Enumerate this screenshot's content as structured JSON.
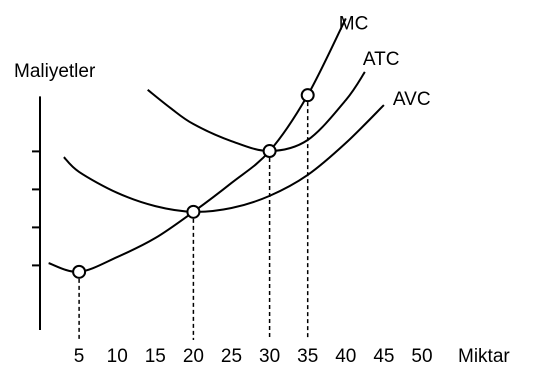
{
  "chart_data": {
    "type": "line",
    "y_label": "Maliyetler",
    "x_label": "Miktar",
    "xlim": [
      0,
      50
    ],
    "xticks": [
      5,
      10,
      15,
      20,
      25,
      30,
      35,
      40,
      45,
      50
    ],
    "ylim": [
      0,
      86
    ],
    "yticks": [
      17,
      27,
      37,
      47
    ],
    "series": [
      {
        "name": "MC",
        "color": "#000000",
        "x": [
          1,
          5,
          10,
          15,
          20,
          25,
          30,
          35,
          40
        ],
        "values": [
          17.6,
          15.3,
          19.2,
          24.2,
          31.1,
          38.7,
          47.1,
          61.8,
          82
        ]
      },
      {
        "name": "ATC",
        "color": "#000000",
        "x": [
          14,
          17,
          20,
          25,
          30,
          35,
          40,
          42.5
        ],
        "values": [
          63.2,
          58.4,
          54.2,
          49.7,
          47.1,
          50,
          60.5,
          67.9
        ]
      },
      {
        "name": "AVC",
        "color": "#000000",
        "x": [
          3,
          5,
          10,
          15,
          20,
          25,
          30,
          35,
          40,
          45
        ],
        "values": [
          45.5,
          41.6,
          36.1,
          32.6,
          31.1,
          32.1,
          35.3,
          40.8,
          49.2,
          59.2
        ]
      }
    ],
    "markers": {
      "x": [
        5,
        20,
        30,
        35
      ],
      "values": [
        15.3,
        31.1,
        47.1,
        61.8
      ]
    }
  }
}
